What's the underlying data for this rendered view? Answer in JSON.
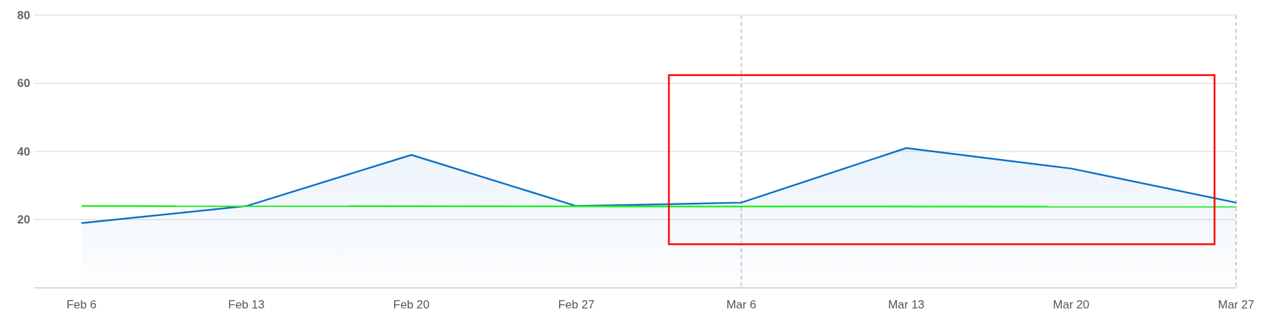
{
  "chart_data": {
    "type": "area",
    "x": [
      "--02-06",
      "--02-13",
      "--02-20",
      "--02-27",
      "--03-06",
      "--03-13",
      "--03-20",
      "--03-27"
    ],
    "series": [
      {
        "color": "#0a6fc6",
        "values": [
          19,
          24,
          39,
          24,
          25,
          41,
          35,
          25
        ]
      },
      {
        "type": "line",
        "color": "#22ee22",
        "x": [
          "--02-06",
          "--03-27"
        ],
        "values": [
          24,
          23.8
        ]
      }
    ],
    "xlim": [
      "--02-04",
      "--03-27"
    ],
    "xticks": [
      {
        "value": "--02-06",
        "label": "Feb 6"
      },
      {
        "value": "--02-13",
        "label": "Feb 13"
      },
      {
        "value": "--02-20",
        "label": "Feb 20"
      },
      {
        "value": "--02-27",
        "label": "Feb 27"
      },
      {
        "value": "--03-06",
        "label": "Mar 6"
      },
      {
        "value": "--03-13",
        "label": "Mar 13"
      },
      {
        "value": "--03-20",
        "label": "Mar 20"
      },
      {
        "value": "--03-27",
        "label": "Mar 27"
      }
    ],
    "ylim": [
      0,
      80
    ],
    "yticks": [
      20,
      40,
      60,
      80
    ],
    "grid": "y",
    "ref_lines": [
      {
        "axis": "x",
        "value": "--03-06",
        "color": "#cccccc",
        "line_style": "dashed"
      },
      {
        "axis": "x",
        "value": "--03-27",
        "color": "#cccccc",
        "line_style": "dashed"
      }
    ]
  }
}
